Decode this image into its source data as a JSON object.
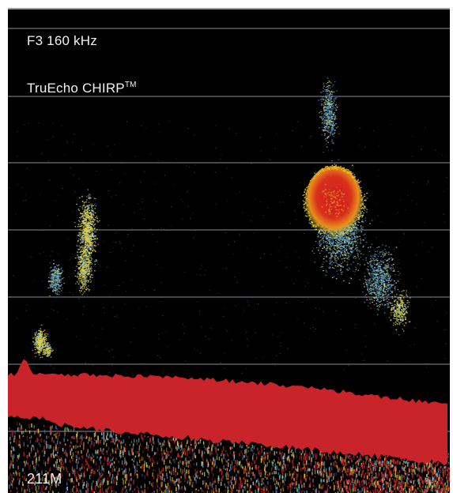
{
  "display": {
    "frequency_label": "F3 160 kHz",
    "mode_label": "TruEcho CHIRP",
    "mode_superscript": "TM",
    "depth_label": "211M"
  },
  "colors": {
    "background": "#000000",
    "grid_line": "#8a9094",
    "echo_weak": "#4a8fb8",
    "echo_light": "#9fd0e0",
    "echo_medium": "#e8d030",
    "echo_strong": "#e88020",
    "echo_max": "#d02020",
    "bottom": "#c8242a"
  }
}
